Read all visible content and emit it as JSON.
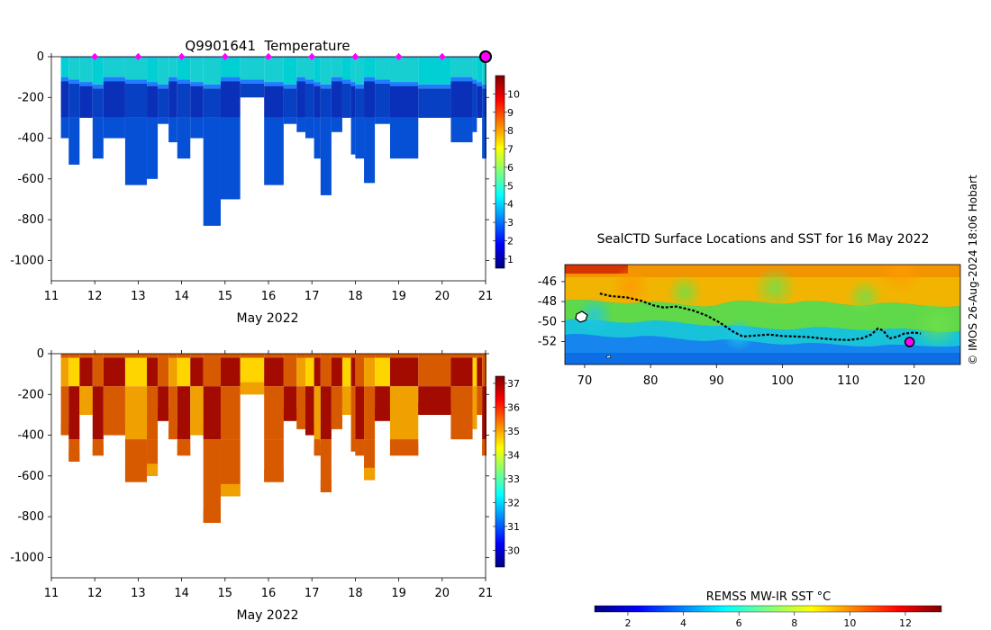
{
  "credit": "© IMOS 26-Aug-2024 18:06 Hobart",
  "colors": {
    "jet": [
      "#00007f",
      "#0000ff",
      "#007fff",
      "#00ffff",
      "#7fff7f",
      "#ffff00",
      "#ff7f00",
      "#ff0000",
      "#7f0000"
    ],
    "profile_dark_blue": "#0a2fb8",
    "profile_mid_blue": "#0650d6",
    "profile_cyan": "#00d0d4",
    "profile_bright_blue": "#1d7dff",
    "sal_red": "#a30a00",
    "sal_orange": "#d85a00",
    "sal_gold": "#f0a000",
    "sal_yellow": "#ffd500",
    "marker_magenta": "#ff00ff",
    "track_black": "#000000",
    "frame_black": "#000000"
  },
  "chart_data": [
    {
      "type": "heatmap",
      "title": "Q9901641  Temperature",
      "xlabel": "May 2022",
      "ylabel": "",
      "xlim": [
        11,
        21
      ],
      "ylim": [
        -1100,
        0
      ],
      "x_ticks": [
        "11",
        "12",
        "13",
        "14",
        "15",
        "16",
        "17",
        "18",
        "19",
        "20",
        "21"
      ],
      "y_ticks": [
        "0",
        "-200",
        "-400",
        "-600",
        "-800",
        "-1000"
      ],
      "colorbar": {
        "min": 0.5,
        "max": 11,
        "ticks": [
          "1",
          "2",
          "3",
          "4",
          "5",
          "6",
          "7",
          "8",
          "9",
          "10"
        ]
      },
      "surface_markers": [
        12,
        13,
        14,
        15,
        16,
        17,
        18,
        19,
        20
      ],
      "current_position": 21,
      "profiles": [
        {
          "x0": 11.22,
          "x1": 11.4,
          "depth": 400
        },
        {
          "x0": 11.4,
          "x1": 11.65,
          "depth": 530
        },
        {
          "x0": 11.65,
          "x1": 11.95,
          "depth": 300
        },
        {
          "x0": 11.95,
          "x1": 12.2,
          "depth": 500
        },
        {
          "x0": 12.2,
          "x1": 12.7,
          "depth": 400
        },
        {
          "x0": 12.7,
          "x1": 13.2,
          "depth": 630
        },
        {
          "x0": 13.2,
          "x1": 13.45,
          "depth": 600
        },
        {
          "x0": 13.45,
          "x1": 13.7,
          "depth": 330
        },
        {
          "x0": 13.7,
          "x1": 13.9,
          "depth": 420
        },
        {
          "x0": 13.9,
          "x1": 14.2,
          "depth": 500
        },
        {
          "x0": 14.2,
          "x1": 14.5,
          "depth": 400
        },
        {
          "x0": 14.5,
          "x1": 14.9,
          "depth": 830
        },
        {
          "x0": 14.9,
          "x1": 15.35,
          "depth": 700
        },
        {
          "x0": 15.35,
          "x1": 15.9,
          "depth": 200
        },
        {
          "x0": 15.9,
          "x1": 16.35,
          "depth": 630
        },
        {
          "x0": 16.35,
          "x1": 16.65,
          "depth": 330
        },
        {
          "x0": 16.65,
          "x1": 16.85,
          "depth": 370
        },
        {
          "x0": 16.85,
          "x1": 17.05,
          "depth": 400
        },
        {
          "x0": 17.05,
          "x1": 17.2,
          "depth": 500
        },
        {
          "x0": 17.2,
          "x1": 17.45,
          "depth": 680
        },
        {
          "x0": 17.45,
          "x1": 17.7,
          "depth": 370
        },
        {
          "x0": 17.7,
          "x1": 17.9,
          "depth": 300
        },
        {
          "x0": 17.9,
          "x1": 18.0,
          "depth": 480
        },
        {
          "x0": 18.0,
          "x1": 18.2,
          "depth": 500
        },
        {
          "x0": 18.2,
          "x1": 18.45,
          "depth": 620
        },
        {
          "x0": 18.45,
          "x1": 18.8,
          "depth": 330
        },
        {
          "x0": 18.8,
          "x1": 19.45,
          "depth": 500
        },
        {
          "x0": 19.45,
          "x1": 20.2,
          "depth": 300
        },
        {
          "x0": 20.2,
          "x1": 20.7,
          "depth": 420
        },
        {
          "x0": 20.7,
          "x1": 20.8,
          "depth": 370
        },
        {
          "x0": 20.8,
          "x1": 20.92,
          "depth": 300
        },
        {
          "x0": 20.92,
          "x1": 21.02,
          "depth": 500
        }
      ]
    },
    {
      "type": "heatmap",
      "title": "",
      "xlabel": "May 2022",
      "ylabel": "",
      "xlim": [
        11,
        21
      ],
      "ylim": [
        -1100,
        0
      ],
      "x_ticks": [
        "11",
        "12",
        "13",
        "14",
        "15",
        "16",
        "17",
        "18",
        "19",
        "20",
        "21"
      ],
      "y_ticks": [
        "0",
        "-200",
        "-400",
        "-600",
        "-800",
        "-1000"
      ],
      "colorbar": {
        "min": 29.3,
        "max": 37.3,
        "ticks": [
          "30",
          "31",
          "32",
          "33",
          "34",
          "35",
          "36",
          "37"
        ]
      },
      "profiles_ref": "same depths as temperature panel"
    },
    {
      "type": "heatmap",
      "title": "SealCTD Surface Locations and SST for 16 May 2022",
      "xlabel": "",
      "ylabel": "",
      "xlim": [
        67,
        127
      ],
      "ylim": [
        -54.3,
        -44.3
      ],
      "x_ticks": [
        "70",
        "80",
        "90",
        "100",
        "110",
        "120"
      ],
      "y_ticks": [
        "-46",
        "-48",
        "-50",
        "-52"
      ],
      "colorbar": {
        "label": "REMSS MW-IR SST °C",
        "min": 0.8,
        "max": 13.3,
        "ticks": [
          "2",
          "4",
          "6",
          "8",
          "10",
          "12"
        ]
      },
      "track": [
        [
          72.3,
          -47.2
        ],
        [
          74.0,
          -47.45
        ],
        [
          76.5,
          -47.6
        ],
        [
          78.5,
          -47.9
        ],
        [
          80.5,
          -48.4
        ],
        [
          82.0,
          -48.6
        ],
        [
          84.0,
          -48.5
        ],
        [
          86.5,
          -48.9
        ],
        [
          88.5,
          -49.4
        ],
        [
          90.5,
          -50.1
        ],
        [
          92.5,
          -51.0
        ],
        [
          94.0,
          -51.5
        ],
        [
          96.0,
          -51.4
        ],
        [
          98.0,
          -51.3
        ],
        [
          100.0,
          -51.45
        ],
        [
          102.0,
          -51.5
        ],
        [
          104.0,
          -51.55
        ],
        [
          106.0,
          -51.7
        ],
        [
          108.0,
          -51.8
        ],
        [
          110.0,
          -51.85
        ],
        [
          112.0,
          -51.7
        ],
        [
          113.5,
          -51.3
        ],
        [
          114.5,
          -50.7
        ],
        [
          115.3,
          -50.9
        ],
        [
          116.2,
          -51.7
        ],
        [
          117.5,
          -51.5
        ],
        [
          118.5,
          -51.2
        ],
        [
          120.0,
          -51.1
        ],
        [
          121.0,
          -51.2
        ]
      ],
      "current_position": [
        119.3,
        -52.05
      ]
    }
  ]
}
